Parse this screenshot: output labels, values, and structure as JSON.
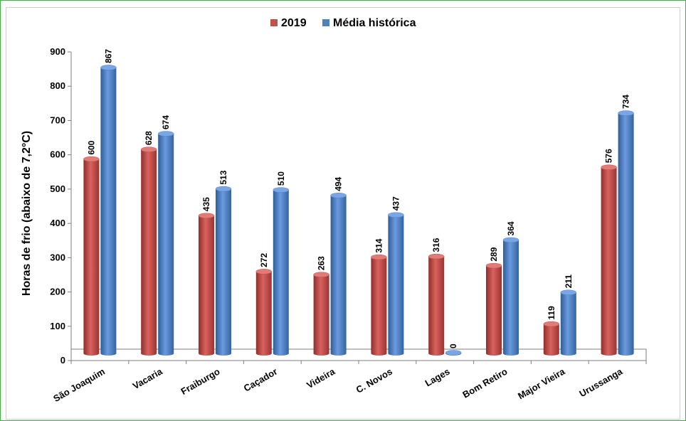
{
  "chart_data": {
    "type": "bar",
    "title": "",
    "xlabel": "",
    "ylabel": "Horas de frio (abaixo de 7,2°C)",
    "ylim": [
      0,
      900
    ],
    "yticks": [
      0,
      100,
      200,
      300,
      400,
      500,
      600,
      700,
      800,
      900
    ],
    "legend_position": "top-center",
    "grid": false,
    "categories": [
      "São Joaquim",
      "Vacaria",
      "Fraiburgo",
      "Caçador",
      "Videira",
      "C. Novos",
      "Lages",
      "Bom Retiro",
      "Major Vieira",
      "Urussanga"
    ],
    "series": [
      {
        "name": "2019",
        "color": "#c0504d",
        "values": [
          600,
          628,
          435,
          272,
          263,
          314,
          316,
          289,
          119,
          576
        ]
      },
      {
        "name": "Média histórica",
        "color": "#4f81bd",
        "values": [
          867,
          674,
          513,
          510,
          494,
          437,
          0,
          364,
          211,
          734
        ]
      }
    ]
  }
}
